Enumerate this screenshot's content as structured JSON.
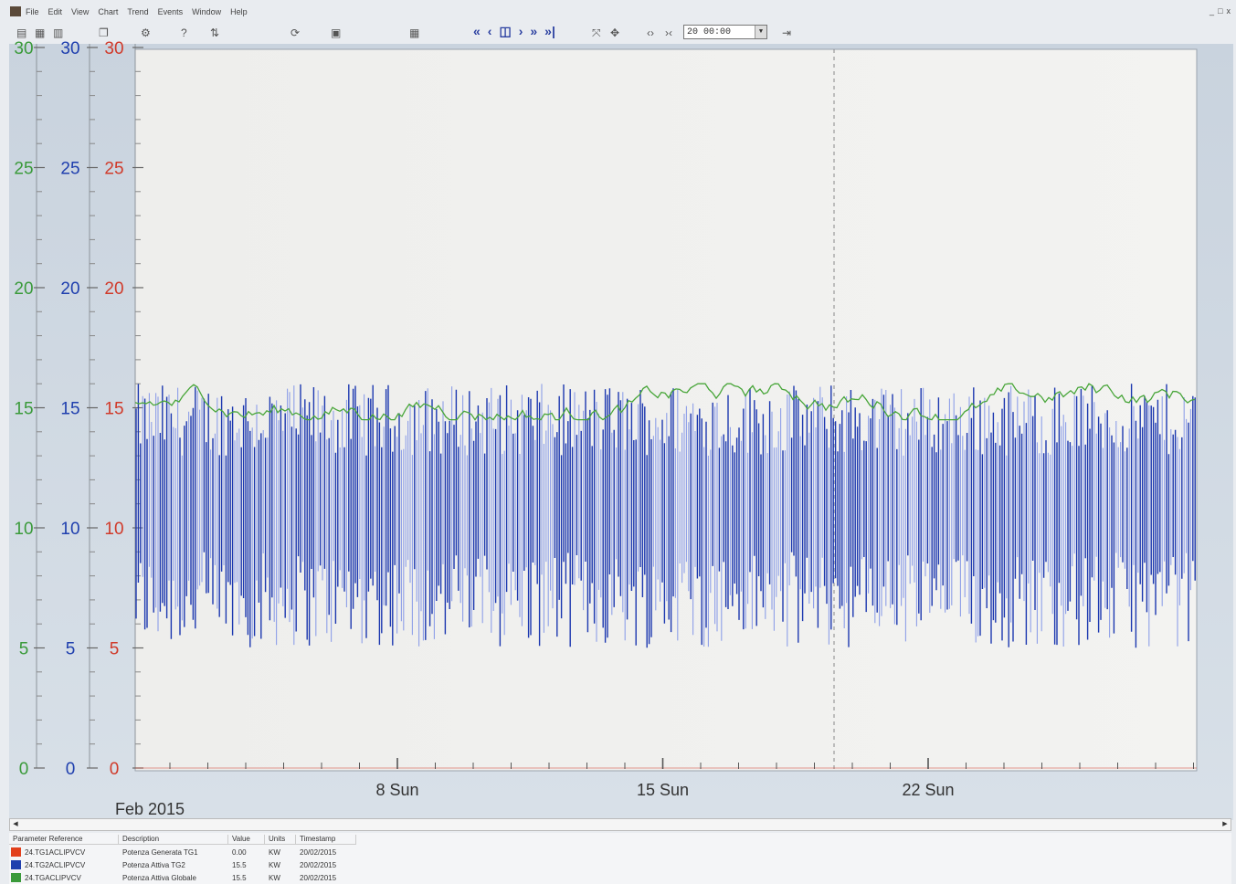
{
  "window": {
    "menus": [
      "File",
      "Edit",
      "View",
      "Chart",
      "Trend",
      "Events",
      "Window",
      "Help"
    ],
    "controls": [
      "_",
      "□",
      "x"
    ]
  },
  "toolbar": {
    "nav_buttons": [
      "«",
      "‹",
      "◫",
      "›",
      "»",
      "»|"
    ],
    "time_value": "20 00:00"
  },
  "colors": {
    "axis_green": "#3a9a3a",
    "axis_blue": "#1f3fae",
    "axis_red": "#d03a2a",
    "series_dark": "#1c38b0",
    "series_light": "#8e9fe8",
    "series_green": "#49a63a"
  },
  "chart_data": {
    "type": "line",
    "x_axis": {
      "month_label": "Feb 2015",
      "range_days": [
        1,
        29
      ],
      "major_ticks": [
        {
          "day": 8,
          "label": "8 Sun"
        },
        {
          "day": 15,
          "label": "15 Sun"
        },
        {
          "day": 22,
          "label": "22 Sun"
        }
      ]
    },
    "y_axes": [
      {
        "color": "green",
        "ticks": [
          "0",
          "5",
          "10",
          "15",
          "20",
          "25",
          "30"
        ],
        "range": [
          0,
          30
        ]
      },
      {
        "color": "blue",
        "ticks": [
          "0",
          "5",
          "10",
          "15",
          "20",
          "25",
          "30"
        ],
        "range": [
          0,
          30
        ]
      },
      {
        "color": "red",
        "ticks": [
          "0",
          "5",
          "10",
          "15",
          "20",
          "25",
          "30"
        ],
        "range": [
          0,
          30
        ]
      }
    ],
    "grid": false,
    "series": [
      {
        "color": "red",
        "description": "Potenza Generata TG1",
        "values_note": "0.00 throughout"
      },
      {
        "color": "blue",
        "description": "Potenza Attiva TG2",
        "min_range": [
          5,
          9
        ],
        "max_range": [
          13,
          16
        ]
      },
      {
        "color": "green",
        "description": "Potenza Attiva Globale",
        "level_range": [
          14.5,
          16
        ]
      }
    ]
  },
  "legend_table": {
    "headers": [
      "Parameter Reference",
      "Description",
      "Value",
      "Units",
      "Timestamp"
    ],
    "rows": [
      {
        "color": "#e2401c",
        "ref": "24.TG1ACLIPVCV",
        "desc": "Potenza Generata TG1",
        "value": "0.00",
        "units": "KW",
        "time": "20/02/2015"
      },
      {
        "color": "#1f3fae",
        "ref": "24.TG2ACLIPVCV",
        "desc": "Potenza Attiva TG2",
        "value": "15.5",
        "units": "KW",
        "time": "20/02/2015"
      },
      {
        "color": "#3a9a3a",
        "ref": "24.TGACLIPVCV",
        "desc": "Potenza Attiva Globale",
        "value": "15.5",
        "units": "KW",
        "time": "20/02/2015"
      }
    ]
  }
}
